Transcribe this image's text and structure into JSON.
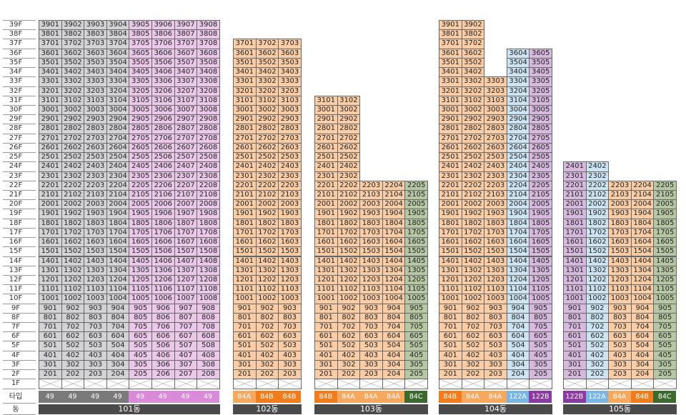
{
  "row_labels": {
    "type": "타입",
    "dong": "동"
  },
  "colors": {
    "49": "#d3d3d5",
    "49p": "#ebc8ea",
    "84A": "#fbcda6",
    "84B": "#fbcda6",
    "84C": "#b6c8a3",
    "122A": "#cde4f3",
    "122B": "#d7b9e0"
  },
  "type_colors": {
    "49": "#7a7a7a",
    "49p": "#d98ad8",
    "84A": "#f5a85e",
    "84B": "#f07c1c",
    "84C": "#3c6a2e",
    "122A": "#79b6e3",
    "122B": "#8a3aa0"
  },
  "buildings": [
    {
      "dong": "101동",
      "types": [
        "49",
        "49",
        "49",
        "49",
        "49",
        "49",
        "49",
        "49"
      ],
      "type_keys": [
        "49",
        "49",
        "49",
        "49",
        "49p",
        "49p",
        "49p",
        "49p"
      ],
      "cols": [
        {
          "max": 39
        },
        {
          "max": 39
        },
        {
          "max": 39
        },
        {
          "max": 39
        },
        {
          "max": 39
        },
        {
          "max": 39
        },
        {
          "max": 39
        },
        {
          "max": 39
        }
      ]
    },
    {
      "dong": "102동",
      "types": [
        "84A",
        "84B",
        "84B"
      ],
      "type_keys": [
        "84A",
        "84B",
        "84B"
      ],
      "cols": [
        {
          "max": 37
        },
        {
          "max": 37
        },
        {
          "max": 37
        }
      ]
    },
    {
      "dong": "103동",
      "types": [
        "84B",
        "84A",
        "84A",
        "84A",
        "84C"
      ],
      "type_keys": [
        "84B",
        "84A",
        "84A",
        "84A",
        "84C"
      ],
      "cols": [
        {
          "max": 31
        },
        {
          "max": 31
        },
        {
          "max": 22
        },
        {
          "max": 22
        },
        {
          "max": 22
        }
      ]
    },
    {
      "dong": "104동",
      "types": [
        "84B",
        "84A",
        "84A",
        "122A",
        "122B"
      ],
      "type_keys": [
        "84B",
        "84A",
        "84A",
        "122A",
        "122B"
      ],
      "cols": [
        {
          "max": 39
        },
        {
          "max": 39
        },
        {
          "max": 33
        },
        {
          "max": 36
        },
        {
          "max": 36
        }
      ]
    },
    {
      "dong": "105동",
      "types": [
        "122B",
        "122A",
        "84A",
        "84B",
        "84C"
      ],
      "type_keys": [
        "122B",
        "122A",
        "84A",
        "84B",
        "84C"
      ],
      "cols": [
        {
          "max": 24
        },
        {
          "max": 24
        },
        {
          "max": 22
        },
        {
          "max": 22
        },
        {
          "max": 22
        }
      ]
    }
  ]
}
